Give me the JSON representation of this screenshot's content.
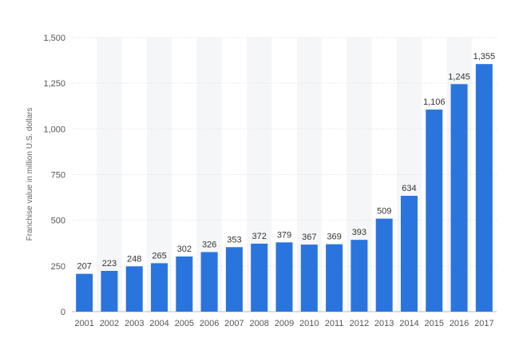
{
  "chart_data": {
    "type": "bar",
    "title": "",
    "xlabel": "",
    "ylabel": "Franchise value in million U.S. dollars",
    "categories": [
      "2001",
      "2002",
      "2003",
      "2004",
      "2005",
      "2006",
      "2007",
      "2008",
      "2009",
      "2010",
      "2011",
      "2012",
      "2013",
      "2014",
      "2015",
      "2016",
      "2017"
    ],
    "values": [
      207,
      223,
      248,
      265,
      302,
      326,
      353,
      372,
      379,
      367,
      369,
      393,
      509,
      634,
      1106,
      1245,
      1355
    ],
    "value_labels": [
      "207",
      "223",
      "248",
      "265",
      "302",
      "326",
      "353",
      "372",
      "379",
      "367",
      "369",
      "393",
      "509",
      "634",
      "1,106",
      "1,245",
      "1,355"
    ],
    "ylim": [
      0,
      1500
    ],
    "yticks": [
      0,
      250,
      500,
      750,
      1000,
      1250,
      1500
    ],
    "ytick_labels": [
      "0",
      "250",
      "500",
      "750",
      "1,000",
      "1,250",
      "1,500"
    ],
    "grid": true,
    "legend": "none",
    "bar_color": "#2a75dd",
    "alt_band_color": "#f5f6f8"
  }
}
